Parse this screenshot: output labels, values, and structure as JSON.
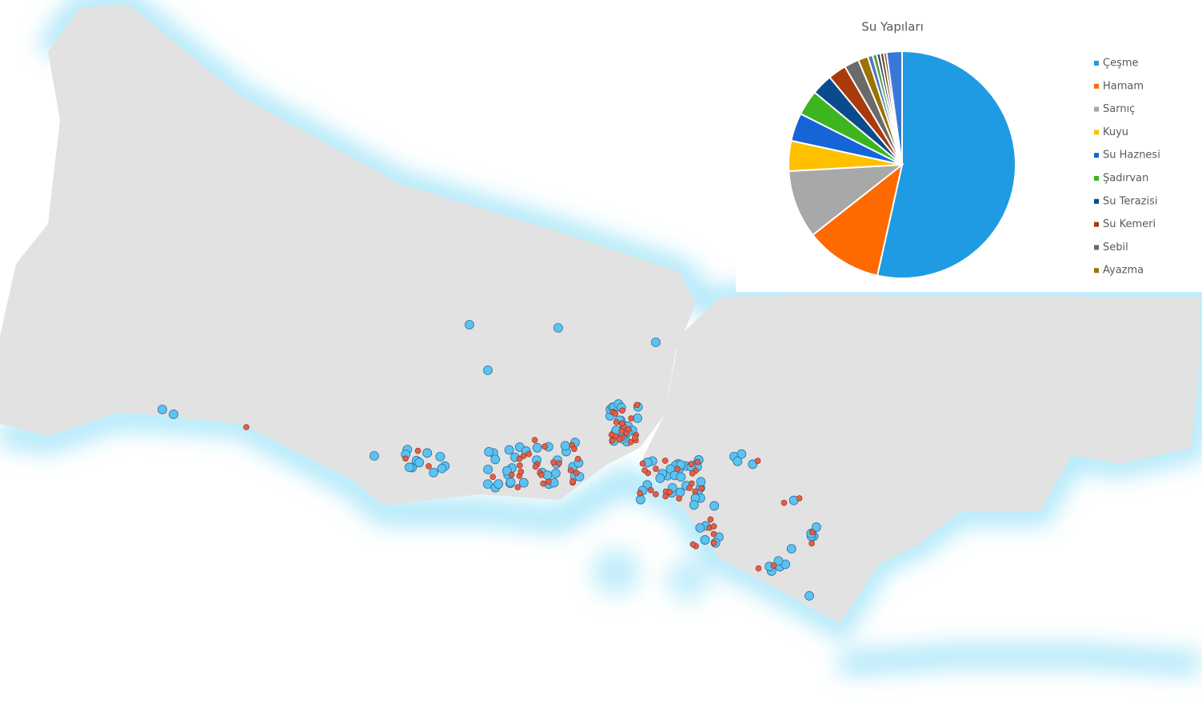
{
  "chart_data": {
    "type": "pie",
    "title": "Su Yapıları",
    "categories": [
      "Çeşme",
      "Hamam",
      "Sarnıç",
      "Kuyu",
      "Su Haznesi",
      "Şadırvan",
      "Su Terazisi",
      "Su Kemeri",
      "Sebil",
      "Ayazma",
      null,
      null,
      null,
      null,
      null,
      null
    ],
    "values": [
      53.5,
      10.9,
      9.7,
      4.3,
      4.0,
      3.6,
      3.0,
      2.6,
      2.1,
      1.4,
      0.7,
      0.6,
      0.5,
      0.5,
      0.4,
      2.2
    ],
    "colors": [
      "#1e9be3",
      "#ff6a00",
      "#a8a8a8",
      "#ffc000",
      "#1565d8",
      "#3db51f",
      "#0b4a8c",
      "#a83a0b",
      "#6a6a6a",
      "#9c7200",
      "#4a78c0",
      "#5d9c3a",
      "#1f4e79",
      "#843c0c",
      "#4d4d4d",
      "#3a78d8"
    ],
    "legend": "right"
  }
}
